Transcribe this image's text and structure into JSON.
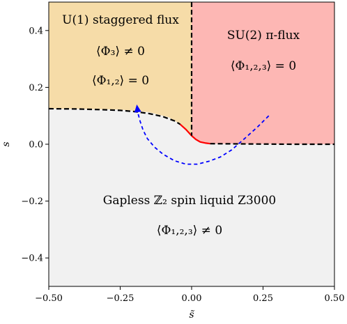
{
  "chart_data": {
    "type": "phase-diagram",
    "xlabel": "s̃",
    "ylabel": "s",
    "xlim": [
      -0.5,
      0.5
    ],
    "ylim": [
      -0.5,
      0.5
    ],
    "x_ticks": [
      -0.5,
      -0.25,
      0.0,
      0.25,
      0.5
    ],
    "x_tick_labels": [
      "−0.50",
      "−0.25",
      "0.00",
      "0.25",
      "0.50"
    ],
    "y_ticks": [
      -0.4,
      -0.2,
      0.0,
      0.2,
      0.4
    ],
    "y_tick_labels": [
      "−0.4",
      "−0.2",
      "0.0",
      "0.2",
      "0.4"
    ],
    "regions": [
      {
        "id": "u1",
        "fill": "#f6dca8",
        "polygon": [
          [
            -0.5,
            0.5
          ],
          [
            0.0,
            0.5
          ],
          [
            0.0,
            0.03
          ],
          [
            -0.03,
            0.065
          ],
          [
            -0.08,
            0.095
          ],
          [
            -0.15,
            0.113
          ],
          [
            -0.25,
            0.122
          ],
          [
            -0.4,
            0.124
          ],
          [
            -0.5,
            0.125
          ]
        ],
        "labels": [
          "U(1) staggered flux",
          "⟨Φ₃⟩ ≠ 0",
          "⟨Φ₁,₂⟩ = 0"
        ]
      },
      {
        "id": "su2",
        "fill": "#fdb7b4",
        "polygon": [
          [
            0.0,
            0.5
          ],
          [
            0.5,
            0.5
          ],
          [
            0.5,
            0.0
          ],
          [
            0.07,
            0.002
          ],
          [
            0.03,
            0.008
          ],
          [
            0.0,
            0.03
          ]
        ],
        "labels": [
          "SU(2) π-flux",
          "⟨Φ₁,₂,₃⟩ = 0"
        ]
      },
      {
        "id": "z2",
        "fill": "#f1f1f1",
        "labels": [
          "Gapless ℤ₂ spin liquid Z3000",
          "⟨Φ₁,₂,₃⟩ ≠ 0"
        ]
      }
    ],
    "boundaries": [
      {
        "name": "u1-z2",
        "style": "dashed",
        "color": "#000000",
        "points": [
          [
            -0.5,
            0.125
          ],
          [
            -0.4,
            0.124
          ],
          [
            -0.3,
            0.121
          ],
          [
            -0.25,
            0.119
          ],
          [
            -0.2,
            0.115
          ],
          [
            -0.15,
            0.108
          ],
          [
            -0.1,
            0.097
          ],
          [
            -0.06,
            0.082
          ],
          [
            -0.04,
            0.07
          ]
        ]
      },
      {
        "name": "first-order",
        "style": "solid",
        "color": "#ff0000",
        "points": [
          [
            -0.04,
            0.07
          ],
          [
            -0.02,
            0.052
          ],
          [
            0.0,
            0.03
          ],
          [
            0.015,
            0.017
          ],
          [
            0.03,
            0.008
          ],
          [
            0.05,
            0.004
          ],
          [
            0.065,
            0.002
          ]
        ]
      },
      {
        "name": "su2-z2",
        "style": "dashed",
        "color": "#000000",
        "points": [
          [
            0.065,
            0.002
          ],
          [
            0.2,
            0.001
          ],
          [
            0.35,
            0.0
          ],
          [
            0.5,
            0.0
          ]
        ]
      },
      {
        "name": "u1-su2",
        "style": "dashed",
        "color": "#000000",
        "points": [
          [
            0.0,
            0.5
          ],
          [
            0.0,
            0.03
          ]
        ]
      }
    ],
    "path": {
      "style": "dashed",
      "color": "#0000ff",
      "arrow_at": "end",
      "points": [
        [
          0.27,
          0.1
        ],
        [
          0.23,
          0.06
        ],
        [
          0.18,
          0.015
        ],
        [
          0.14,
          -0.02
        ],
        [
          0.1,
          -0.045
        ],
        [
          0.06,
          -0.06
        ],
        [
          0.02,
          -0.07
        ],
        [
          -0.02,
          -0.07
        ],
        [
          -0.06,
          -0.058
        ],
        [
          -0.1,
          -0.035
        ],
        [
          -0.13,
          -0.01
        ],
        [
          -0.155,
          0.02
        ],
        [
          -0.17,
          0.05
        ],
        [
          -0.18,
          0.08
        ],
        [
          -0.188,
          0.11
        ],
        [
          -0.19,
          0.125
        ]
      ]
    }
  }
}
